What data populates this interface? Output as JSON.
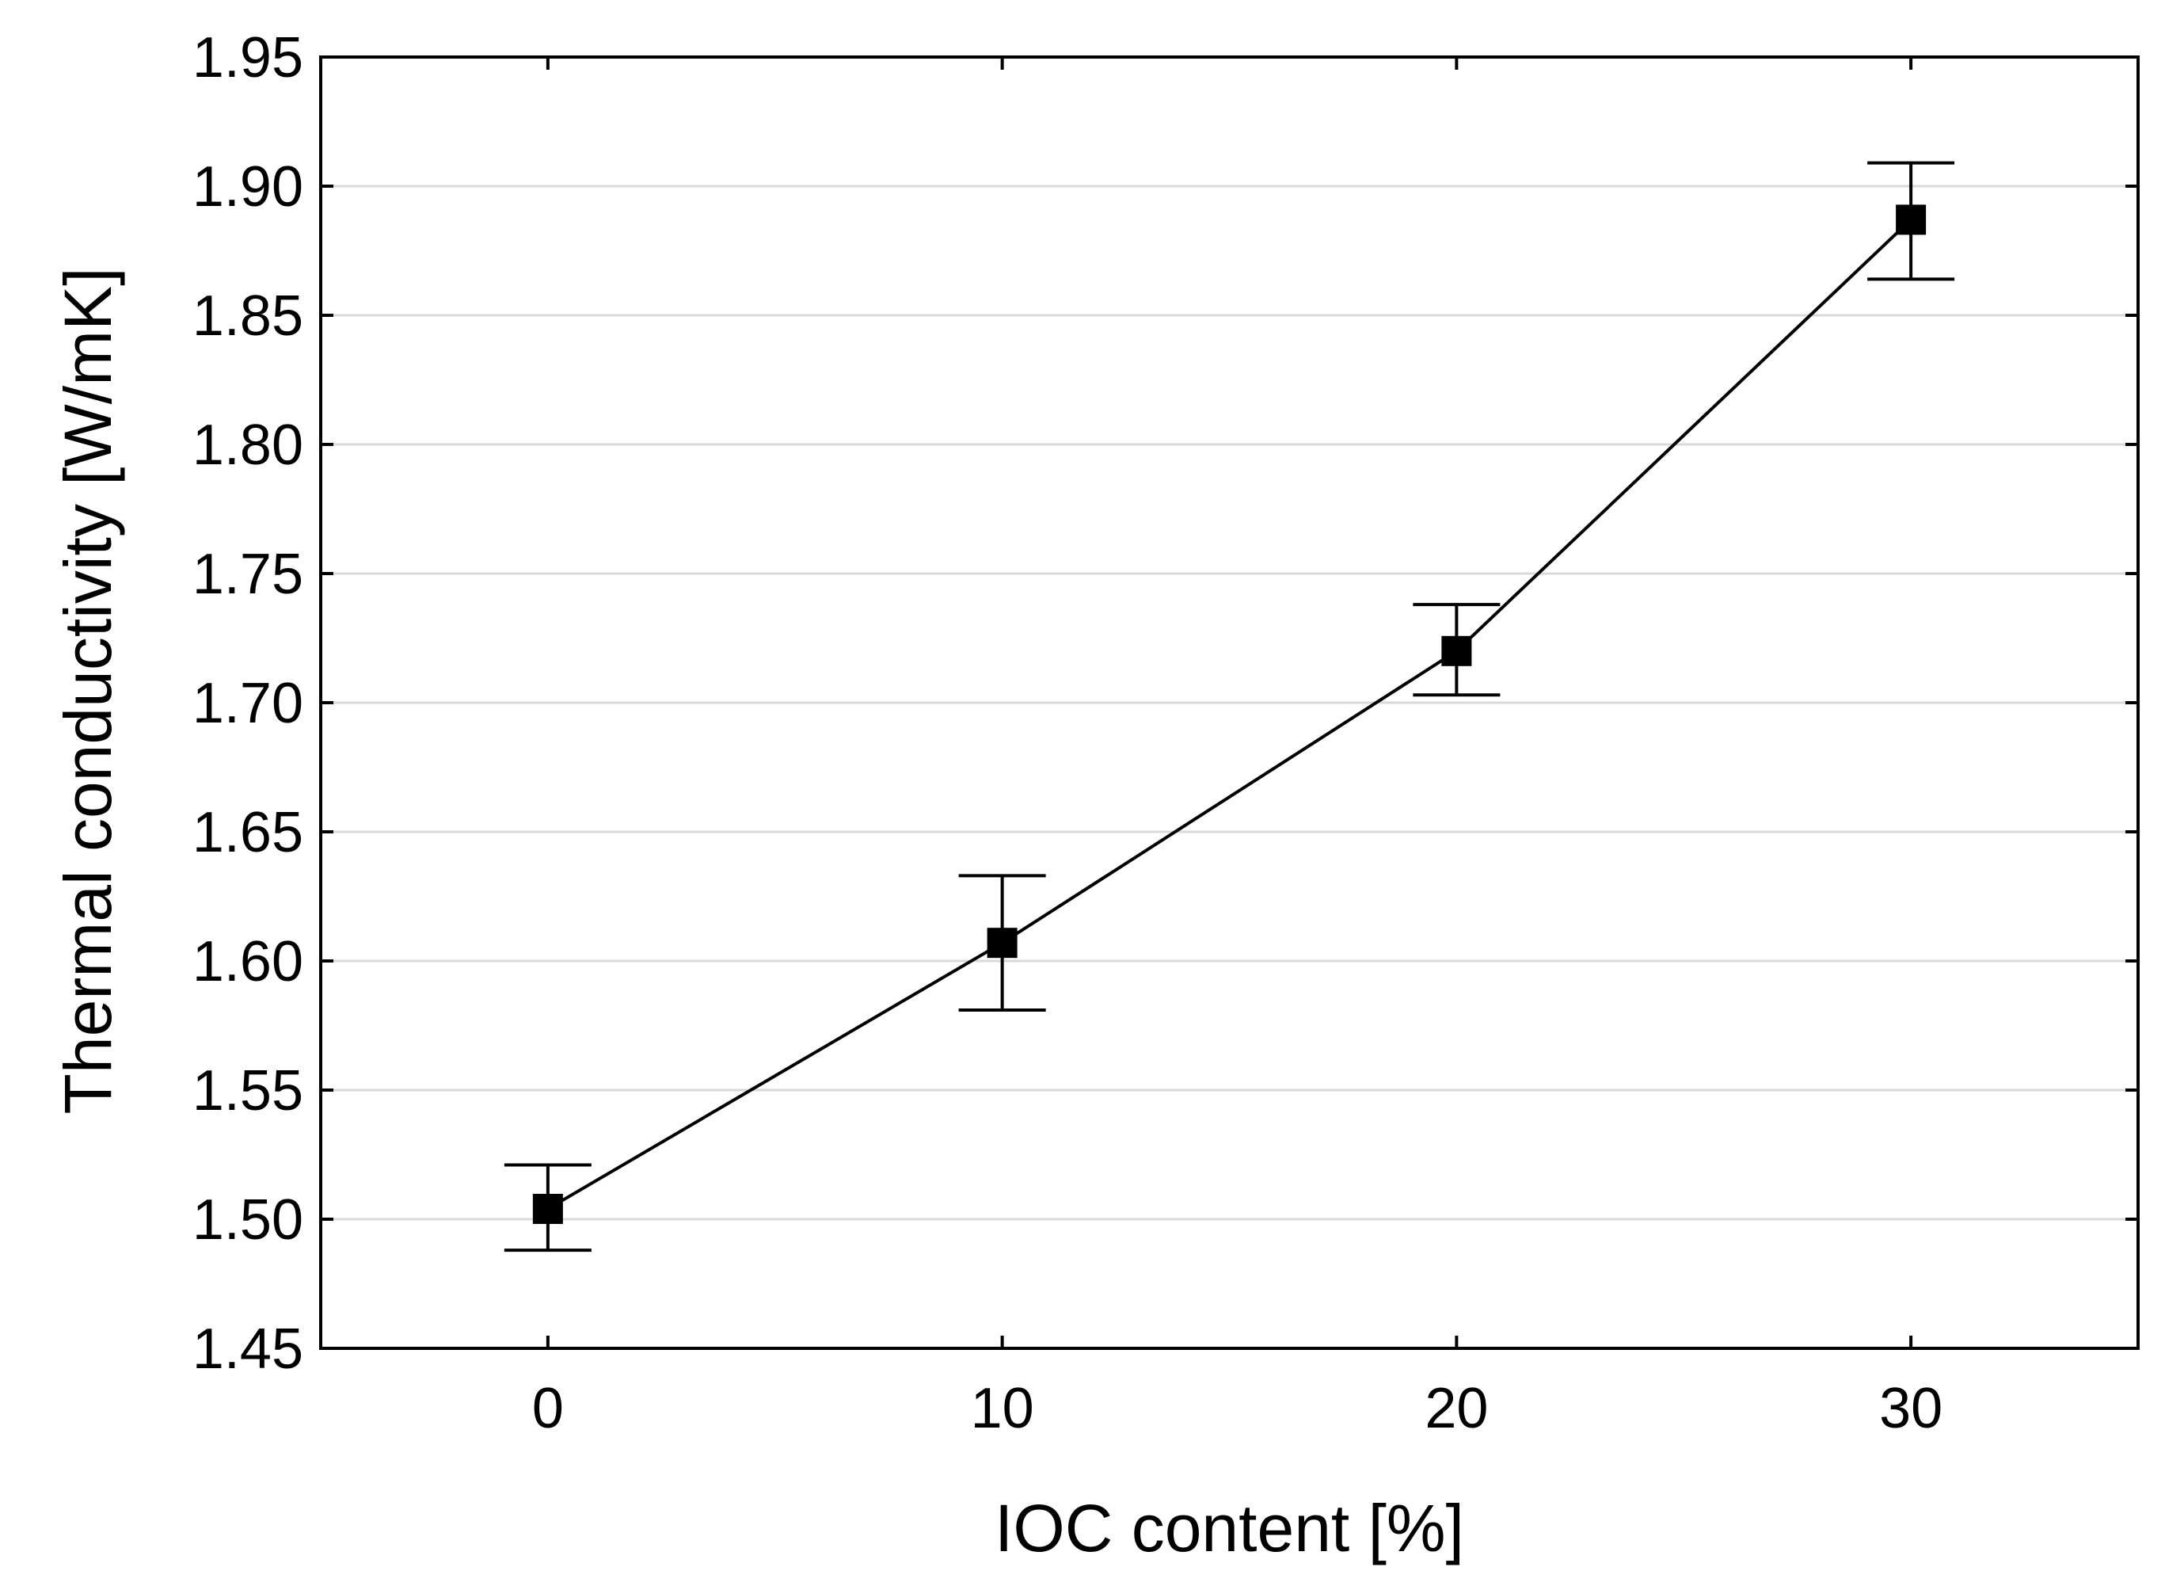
{
  "chart_data": {
    "type": "line",
    "title": "",
    "xlabel": "IOC content [%]",
    "ylabel": "Thermal conductivity [W/mK]",
    "xlim": [
      -5,
      35
    ],
    "ylim": [
      1.45,
      1.95
    ],
    "x_ticks": [
      0,
      10,
      20,
      30
    ],
    "x_tick_labels": [
      "0",
      "10",
      "20",
      "30"
    ],
    "y_ticks": [
      1.45,
      1.5,
      1.55,
      1.6,
      1.65,
      1.7,
      1.75,
      1.8,
      1.85,
      1.9,
      1.95
    ],
    "y_tick_labels": [
      "1.45",
      "1.50",
      "1.55",
      "1.60",
      "1.65",
      "1.70",
      "1.75",
      "1.80",
      "1.85",
      "1.90",
      "1.95"
    ],
    "grid": "horizontal",
    "marker": "square",
    "colors": {
      "series": "#000000",
      "grid": "#d9d9d9",
      "frame": "#000000"
    },
    "series": [
      {
        "x": [
          0,
          10,
          20,
          30
        ],
        "values": [
          1.504,
          1.607,
          1.72,
          1.887
        ],
        "error_low": [
          1.488,
          1.581,
          1.703,
          1.864
        ],
        "error_high": [
          1.521,
          1.633,
          1.738,
          1.909
        ]
      }
    ]
  }
}
